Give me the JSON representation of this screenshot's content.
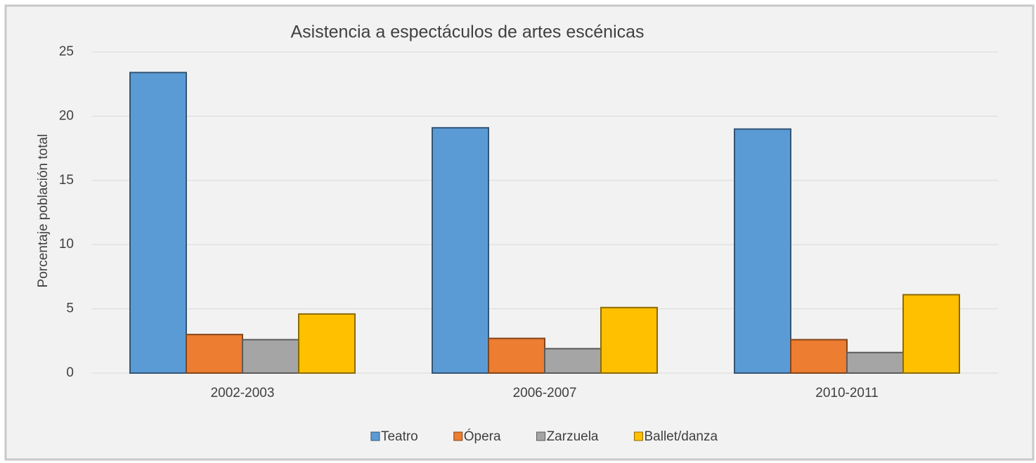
{
  "chart_data": {
    "type": "bar",
    "title": "Asistencia a espectáculos de artes escénicas",
    "y_label": "Porcentaje población total",
    "categories": [
      "2002-2003",
      "2006-2007",
      "2010-2011"
    ],
    "series": [
      {
        "name": "Teatro",
        "color": "#5b9bd5",
        "values": [
          23.4,
          19.1,
          19.0
        ]
      },
      {
        "name": "Ópera",
        "color": "#ed7d31",
        "values": [
          3.0,
          2.7,
          2.6
        ]
      },
      {
        "name": "Zarzuela",
        "color": "#a5a5a5",
        "values": [
          2.6,
          1.9,
          1.6
        ]
      },
      {
        "name": "Ballet/danza",
        "color": "#ffc000",
        "values": [
          4.6,
          5.1,
          6.1
        ]
      }
    ],
    "ylim": [
      0,
      25
    ],
    "yticks": [
      0,
      5,
      10,
      15,
      20,
      25
    ],
    "grid": true,
    "legend": "bottom"
  }
}
